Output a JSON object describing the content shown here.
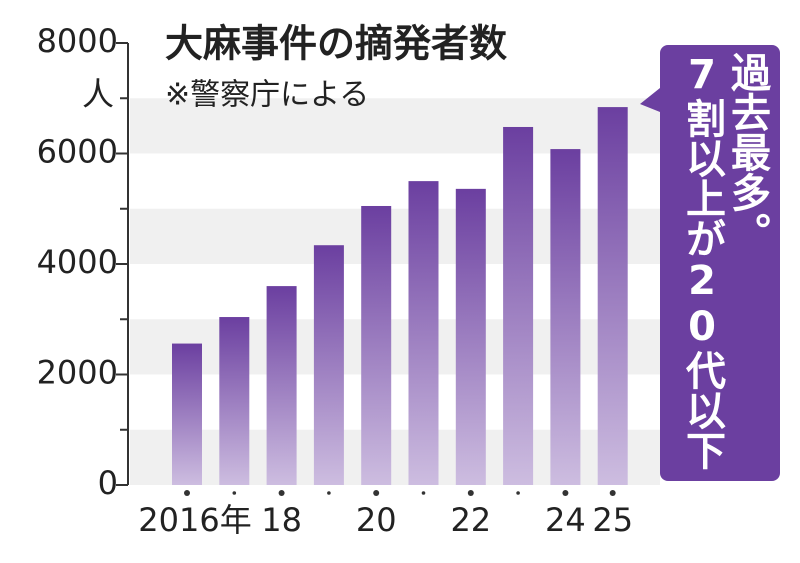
{
  "chart_data": {
    "type": "bar",
    "title": "大麻事件の摘発者数",
    "subtitle": "※警察庁による",
    "y_unit": "人",
    "categories": [
      "2016年",
      null,
      "18",
      null,
      "20",
      null,
      "22",
      null,
      "24",
      "25"
    ],
    "values": [
      2560,
      3040,
      3600,
      4340,
      5050,
      5500,
      5360,
      6480,
      6080,
      6840
    ],
    "color": "#6b3fa0",
    "ylim": [
      0,
      8000
    ],
    "yticks": [
      0,
      2000,
      4000,
      6000,
      8000
    ],
    "grid": true,
    "annotation": [
      "過去最多。",
      "7割以上が20代以下"
    ]
  }
}
